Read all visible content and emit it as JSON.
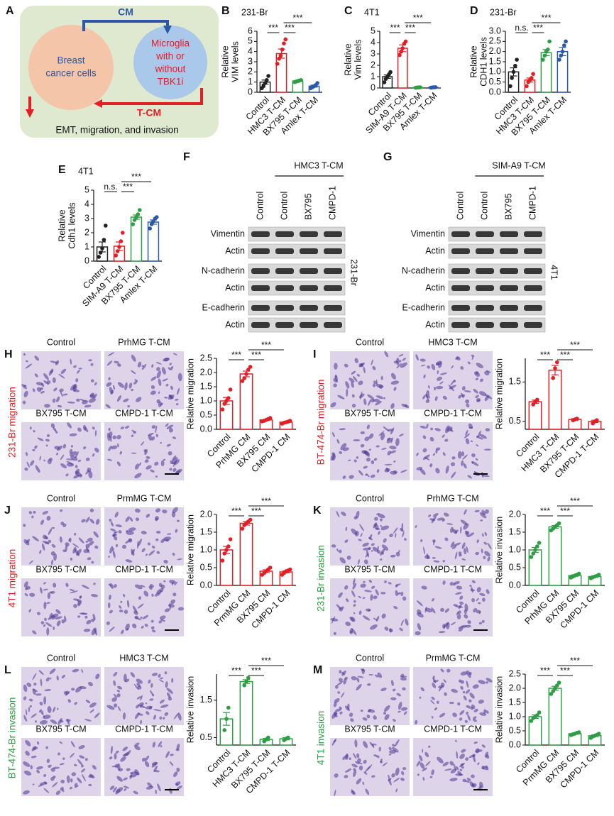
{
  "figure": {
    "panel_A": {
      "letter": "A",
      "cm": "CM",
      "left_cell": [
        "Breast",
        "cancer cells"
      ],
      "right_cell": [
        "Microglia",
        "with or",
        "without",
        "TBK1i"
      ],
      "tcm": "T-CM",
      "outcome": "EMT, migration, and invasion"
    },
    "blots": [
      {
        "panel": "F",
        "treatment": "HMC3 T-CM",
        "lanes": [
          "Control",
          "Control",
          "BX795",
          "CMPD-1"
        ],
        "rows": [
          "Vimentin",
          "Actin",
          "N-cadherin",
          "Actin",
          "E-cadherin",
          "Actin"
        ],
        "cell_line": "231-Br"
      },
      {
        "panel": "G",
        "treatment": "SIM-A9 T-CM",
        "lanes": [
          "Control",
          "Control",
          "BX795",
          "CMPD-1"
        ],
        "rows": [
          "Vimentin",
          "Actin",
          "N-cadherin",
          "Actin",
          "E-cadherin",
          "Actin"
        ],
        "cell_line": "4T1"
      }
    ],
    "micrographs": [
      {
        "panel": "H",
        "side_label": "231-Br migration",
        "side_color": "#e31e24",
        "labels": [
          "Control",
          "PrhMG T-CM",
          "BX795 T-CM",
          "CMPD-1 T-CM"
        ]
      },
      {
        "panel": "I",
        "side_label": "BT-474-Br migration",
        "side_color": "#e31e24",
        "labels": [
          "Control",
          "HMC3 T-CM",
          "BX795 T-CM",
          "CMPD-1 T-CM"
        ]
      },
      {
        "panel": "J",
        "side_label": "4T1 migration",
        "side_color": "#e31e24",
        "labels": [
          "Control",
          "PrmMG T-CM",
          "BX795 T-CM",
          "CMPD-1 T-CM"
        ]
      },
      {
        "panel": "K",
        "side_label": "231-Br invasion",
        "side_color": "#2e9e44",
        "labels": [
          "Control",
          "PrhMG T-CM",
          "BX795 T-CM",
          "CMPD-1 T-CM"
        ]
      },
      {
        "panel": "L",
        "side_label": "BT-474-Br invasion",
        "side_color": "#2e9e44",
        "labels": [
          "Control",
          "HMC3 T-CM",
          "BX795 T-CM",
          "CMPD-1 T-CM"
        ]
      },
      {
        "panel": "M",
        "side_label": "4T1 invasion",
        "side_color": "#2e9e44",
        "labels": [
          "Control",
          "PrmMG T-CM",
          "BX795 T-CM",
          "CMPD-1 T-CM"
        ]
      }
    ]
  },
  "chart_data": [
    {
      "type": "bar",
      "panel": "B",
      "title": "231-Br",
      "ylabel": [
        "Relative",
        "VIM levels"
      ],
      "categories": [
        "Control",
        "HMC3 T-CM",
        "BX795 T-CM",
        "Amlex T-CM"
      ],
      "colors": [
        "#222222",
        "#e31e24",
        "#2e9e44",
        "#2b59a8"
      ],
      "values": [
        1.0,
        3.8,
        1.1,
        0.6
      ],
      "errors": [
        0.2,
        0.45,
        0.05,
        0.1
      ],
      "points": [
        [
          0.4,
          0.6,
          0.9,
          1.2,
          1.6
        ],
        [
          2.8,
          3.3,
          3.6,
          4.2,
          4.8,
          5.2
        ],
        [
          1.0,
          1.05,
          1.1,
          1.15,
          1.2
        ],
        [
          0.4,
          0.5,
          0.6,
          0.7,
          0.9
        ]
      ],
      "ylim": [
        0,
        6
      ],
      "yticks": [
        0,
        1,
        2,
        3,
        4,
        5,
        6
      ],
      "annotations": [
        {
          "from": 0,
          "to": 1,
          "label": "***"
        },
        {
          "from": 1,
          "to": 2,
          "label": "***"
        },
        {
          "from": 1,
          "to": 3,
          "label": "***"
        }
      ]
    },
    {
      "type": "bar",
      "panel": "C",
      "title": "4T1",
      "ylabel": [
        "Relative",
        "Vim levels"
      ],
      "categories": [
        "Control",
        "SIM-A9 T-CM",
        "BX795 T-CM",
        "Amlex T-CM"
      ],
      "colors": [
        "#222222",
        "#e31e24",
        "#2e9e44",
        "#2b59a8"
      ],
      "values": [
        1.0,
        3.5,
        0.05,
        0.05
      ],
      "errors": [
        0.15,
        0.3,
        0.01,
        0.01
      ],
      "points": [
        [
          0.5,
          0.8,
          1.0,
          1.2,
          1.4
        ],
        [
          2.9,
          3.2,
          3.5,
          3.9,
          4.1
        ],
        [
          0.02,
          0.04,
          0.05,
          0.06
        ],
        [
          0.03,
          0.05,
          0.06,
          0.07
        ]
      ],
      "ylim": [
        0,
        5
      ],
      "yticks": [
        0,
        1,
        2,
        3,
        4,
        5
      ],
      "annotations": [
        {
          "from": 0,
          "to": 1,
          "label": "***"
        },
        {
          "from": 1,
          "to": 2,
          "label": "***"
        },
        {
          "from": 1,
          "to": 3,
          "label": "***"
        }
      ]
    },
    {
      "type": "bar",
      "panel": "D",
      "title": "231-Br",
      "ylabel": [
        "Relative",
        "CDH1 levels"
      ],
      "categories": [
        "Control",
        "HMC3 T-CM",
        "BX795 T-CM",
        "Amlex T-CM"
      ],
      "colors": [
        "#222222",
        "#e31e24",
        "#2e9e44",
        "#2b59a8"
      ],
      "values": [
        1.0,
        0.6,
        1.95,
        2.0
      ],
      "errors": [
        0.2,
        0.1,
        0.15,
        0.2
      ],
      "points": [
        [
          0.3,
          0.7,
          1.0,
          1.3,
          1.6
        ],
        [
          0.3,
          0.5,
          0.6,
          0.7,
          0.9
        ],
        [
          1.6,
          1.8,
          2.0,
          2.1,
          2.5
        ],
        [
          1.6,
          1.8,
          2.0,
          2.3,
          2.5
        ]
      ],
      "ylim": [
        0,
        3
      ],
      "yticks": [
        {
          "value": 0,
          "label": "0.0"
        },
        0.5,
        {
          "value": 1,
          "label": "1.0"
        },
        1.5,
        {
          "value": 2,
          "label": "2.0"
        },
        2.5,
        {
          "value": 3,
          "label": "3.0"
        }
      ],
      "annotations": [
        {
          "from": 0,
          "to": 1,
          "label": "n.s."
        },
        {
          "from": 1,
          "to": 2,
          "label": "***"
        },
        {
          "from": 1,
          "to": 3,
          "label": "***"
        }
      ]
    },
    {
      "type": "bar",
      "panel": "E",
      "title": "4T1",
      "ylabel": [
        "Relative",
        "Cdh1 levels"
      ],
      "categories": [
        "Control",
        "SIM-A9 T-CM",
        "BX795 T-CM",
        "Amlex T-CM"
      ],
      "colors": [
        "#222222",
        "#e31e24",
        "#2e9e44",
        "#2b59a8"
      ],
      "values": [
        1.0,
        1.05,
        3.1,
        2.75
      ],
      "errors": [
        0.35,
        0.3,
        0.15,
        0.15
      ],
      "points": [
        [
          0.3,
          0.6,
          0.9,
          1.5,
          2.5
        ],
        [
          0.4,
          0.7,
          1.0,
          1.4,
          2.0
        ],
        [
          2.6,
          2.9,
          3.1,
          3.3,
          3.6
        ],
        [
          2.3,
          2.6,
          2.8,
          3.0,
          3.1
        ]
      ],
      "ylim": [
        0,
        5
      ],
      "yticks": [
        0,
        1,
        2,
        3,
        4,
        5
      ],
      "annotations": [
        {
          "from": 0,
          "to": 1,
          "label": "n.s."
        },
        {
          "from": 1,
          "to": 2,
          "label": "***"
        },
        {
          "from": 1,
          "to": 3,
          "label": "***"
        }
      ]
    },
    {
      "type": "bar",
      "ylabel": "Relative migration",
      "categories": [
        "Control",
        "PrhMG CM",
        "BX795 CM",
        "CMPD-1 CM"
      ],
      "colors": [
        "#e31e24",
        "#e31e24",
        "#e31e24",
        "#e31e24"
      ],
      "values": [
        1.0,
        1.95,
        0.33,
        0.25
      ],
      "errors": [
        0.12,
        0.1,
        0.02,
        0.02
      ],
      "points": [
        [
          0.7,
          0.9,
          1.0,
          1.1,
          1.4
        ],
        [
          1.7,
          1.8,
          1.95,
          2.1,
          2.2
        ],
        [
          0.28,
          0.3,
          0.33,
          0.36,
          0.4
        ],
        [
          0.2,
          0.23,
          0.25,
          0.27,
          0.3
        ]
      ],
      "ylim": [
        0,
        2.5
      ],
      "yticks": [
        {
          "value": 0,
          "label": "0.0"
        },
        0.5,
        {
          "value": 1,
          "label": "1.0"
        },
        1.5,
        {
          "value": 2,
          "label": "2.0"
        },
        2.5
      ],
      "annotations": [
        {
          "from": 0,
          "to": 1,
          "label": "***"
        },
        {
          "from": 1,
          "to": 2,
          "label": "***"
        },
        {
          "from": 1,
          "to": 3,
          "label": "***"
        }
      ]
    },
    {
      "type": "bar",
      "ylabel": "Relative migration",
      "categories": [
        "Control",
        "HMC3 T-CM",
        "BX795 T-CM",
        "CMPD-1 T-CM"
      ],
      "colors": [
        "#e31e24",
        "#e31e24",
        "#e31e24",
        "#e31e24"
      ],
      "values": [
        1.0,
        1.8,
        0.55,
        0.5
      ],
      "errors": [
        0.04,
        0.12,
        0.02,
        0.03
      ],
      "points": [
        [
          0.93,
          1.0,
          1.05
        ],
        [
          1.6,
          1.85,
          2.0
        ],
        [
          0.53,
          0.55,
          0.57
        ],
        [
          0.45,
          0.5,
          0.53
        ]
      ],
      "ylim": [
        0.3,
        2.1
      ],
      "yticks": [
        0.5,
        1.5
      ],
      "annotations": [
        {
          "from": 0,
          "to": 1,
          "label": "***"
        },
        {
          "from": 1,
          "to": 2,
          "label": "***"
        },
        {
          "from": 1,
          "to": 3,
          "label": "***"
        }
      ]
    },
    {
      "type": "bar",
      "ylabel": "Relative migration",
      "categories": [
        "Control",
        "PrmMG CM",
        "BX795 CM",
        "CMPD-1 CM"
      ],
      "colors": [
        "#e31e24",
        "#e31e24",
        "#e31e24",
        "#e31e24"
      ],
      "values": [
        1.0,
        1.75,
        0.4,
        0.38
      ],
      "errors": [
        0.1,
        0.05,
        0.04,
        0.03
      ],
      "points": [
        [
          0.7,
          0.9,
          1.0,
          1.1,
          1.3
        ],
        [
          1.6,
          1.7,
          1.75,
          1.8,
          1.85
        ],
        [
          0.3,
          0.35,
          0.4,
          0.45,
          0.5
        ],
        [
          0.3,
          0.35,
          0.4,
          0.42,
          0.45
        ]
      ],
      "ylim": [
        0,
        2
      ],
      "yticks": [
        {
          "value": 0,
          "label": "0.0"
        },
        0.5,
        {
          "value": 1,
          "label": "1.0"
        },
        1.5,
        {
          "value": 2,
          "label": "2.0"
        }
      ],
      "annotations": [
        {
          "from": 0,
          "to": 1,
          "label": "***"
        },
        {
          "from": 1,
          "to": 2,
          "label": "***"
        },
        {
          "from": 1,
          "to": 3,
          "label": "***"
        }
      ]
    },
    {
      "type": "bar",
      "ylabel": "Relative invasion",
      "categories": [
        "Control",
        "PrhMG CM",
        "BX795 CM",
        "CMPD-1 CM"
      ],
      "colors": [
        "#2e9e44",
        "#2e9e44",
        "#2e9e44",
        "#2e9e44"
      ],
      "values": [
        1.0,
        1.65,
        0.28,
        0.25
      ],
      "errors": [
        0.07,
        0.04,
        0.02,
        0.02
      ],
      "points": [
        [
          0.8,
          0.9,
          1.0,
          1.1,
          1.2
        ],
        [
          1.55,
          1.6,
          1.65,
          1.7,
          1.75
        ],
        [
          0.22,
          0.25,
          0.28,
          0.3,
          0.33
        ],
        [
          0.2,
          0.23,
          0.25,
          0.27,
          0.3
        ]
      ],
      "ylim": [
        0,
        2
      ],
      "yticks": [
        {
          "value": 0,
          "label": "0.0"
        },
        0.5,
        {
          "value": 1,
          "label": "1.0"
        },
        1.5,
        {
          "value": 2,
          "label": "2.0"
        }
      ],
      "annotations": [
        {
          "from": 0,
          "to": 1,
          "label": "***"
        },
        {
          "from": 1,
          "to": 2,
          "label": "***"
        },
        {
          "from": 1,
          "to": 3,
          "label": "***"
        }
      ]
    },
    {
      "type": "bar",
      "ylabel": "Relative invasion",
      "categories": [
        "Control",
        "HMC3 T-CM",
        "BX795 T-CM",
        "CMPD-1 T-CM"
      ],
      "colors": [
        "#2e9e44",
        "#2e9e44",
        "#2e9e44",
        "#2e9e44"
      ],
      "values": [
        1.0,
        2.0,
        0.45,
        0.47
      ],
      "errors": [
        0.17,
        0.05,
        0.03,
        0.03
      ],
      "points": [
        [
          0.7,
          1.0,
          1.3
        ],
        [
          1.9,
          2.0,
          2.1
        ],
        [
          0.4,
          0.45,
          0.5
        ],
        [
          0.43,
          0.47,
          0.5
        ]
      ],
      "ylim": [
        0.3,
        2.2
      ],
      "yticks": [
        0.5,
        1.5
      ],
      "annotations": [
        {
          "from": 0,
          "to": 1,
          "label": "***"
        },
        {
          "from": 1,
          "to": 2,
          "label": "***"
        },
        {
          "from": 1,
          "to": 3,
          "label": "***"
        }
      ]
    },
    {
      "type": "bar",
      "ylabel": "Relative invasion",
      "categories": [
        "Control",
        "PrmMG CM",
        "BX795 CM",
        "CMPD-1 CM"
      ],
      "colors": [
        "#2e9e44",
        "#2e9e44",
        "#2e9e44",
        "#2e9e44"
      ],
      "values": [
        1.0,
        2.0,
        0.4,
        0.33
      ],
      "errors": [
        0.06,
        0.07,
        0.02,
        0.03
      ],
      "points": [
        [
          0.85,
          0.95,
          1.0,
          1.05,
          1.15
        ],
        [
          1.8,
          1.9,
          2.0,
          2.1,
          2.2
        ],
        [
          0.35,
          0.38,
          0.4,
          0.43,
          0.45
        ],
        [
          0.25,
          0.3,
          0.33,
          0.36,
          0.4
        ]
      ],
      "ylim": [
        0,
        2.5
      ],
      "yticks": [
        {
          "value": 0,
          "label": "0.0"
        },
        0.5,
        {
          "value": 1,
          "label": "1.0"
        },
        1.5,
        {
          "value": 2,
          "label": "2.0"
        },
        2.5
      ],
      "annotations": [
        {
          "from": 0,
          "to": 1,
          "label": "***"
        },
        {
          "from": 1,
          "to": 2,
          "label": "***"
        },
        {
          "from": 1,
          "to": 3,
          "label": "***"
        }
      ]
    }
  ]
}
